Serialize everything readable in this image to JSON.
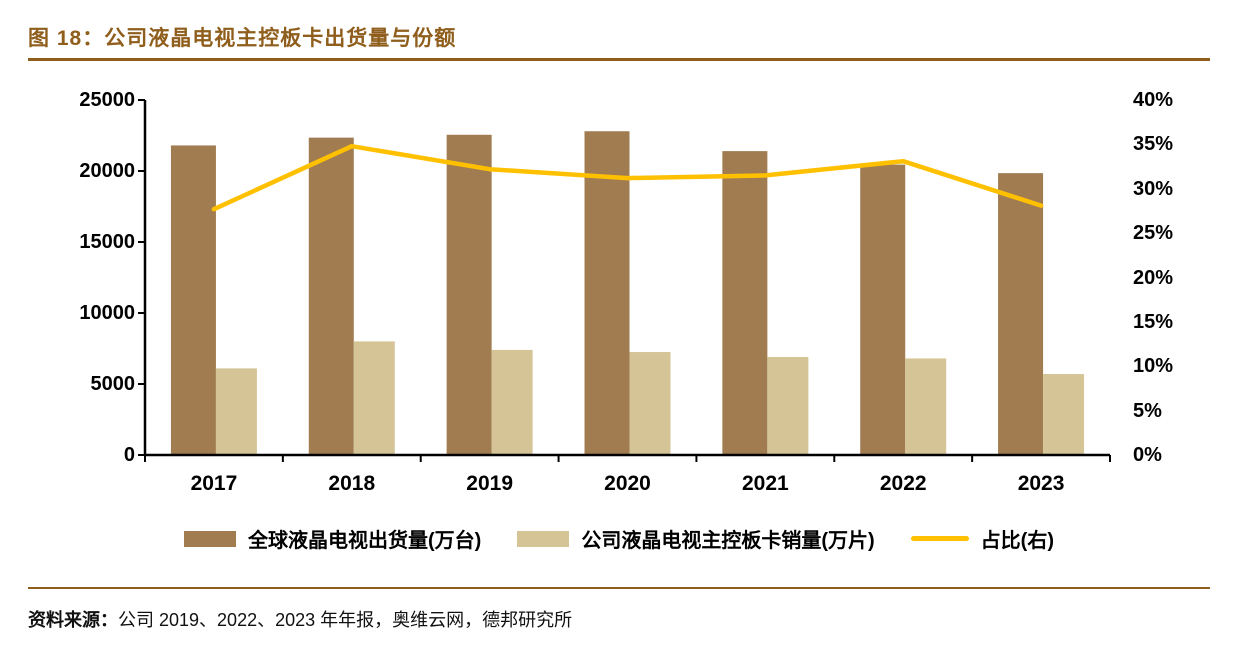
{
  "header": {
    "title": "图 18：公司液晶电视主控板卡出货量与份额"
  },
  "chart_data": {
    "type": "bar",
    "subtype": "grouped bars with overlay line (dual axis)",
    "categories": [
      "2017",
      "2018",
      "2019",
      "2020",
      "2021",
      "2022",
      "2023"
    ],
    "series": [
      {
        "name": "全球液晶电视出货量(万台)",
        "type": "bar",
        "axis": "left",
        "color": "#A07C50",
        "values": [
          21800,
          22350,
          22550,
          22800,
          21400,
          20450,
          19850
        ]
      },
      {
        "name": "公司液晶电视主控板卡销量(万片)",
        "type": "bar",
        "axis": "left",
        "color": "#D4C496",
        "values": [
          6100,
          8000,
          7400,
          7250,
          6900,
          6800,
          5700
        ]
      },
      {
        "name": "占比(右)",
        "type": "line",
        "axis": "right",
        "color": "#FFC000",
        "values": [
          27.7,
          34.8,
          32.2,
          31.2,
          31.5,
          33.1,
          28.1
        ]
      }
    ],
    "left_axis": {
      "min": 0,
      "max": 25000,
      "ticks": [
        0,
        5000,
        10000,
        15000,
        20000,
        25000
      ]
    },
    "right_axis": {
      "min": 0,
      "max": 40,
      "ticks": [
        0,
        5,
        10,
        15,
        20,
        25,
        30,
        35,
        40
      ],
      "suffix": "%"
    },
    "grid": false,
    "legend_position": "bottom"
  },
  "footer": {
    "source_label": "资料来源：",
    "source_text": "公司 2019、2022、2023 年年报，奥维云网，德邦研究所"
  },
  "colors": {
    "accent": "#8F5E1C",
    "axis": "#000000",
    "text": "#000000",
    "background": "#FFFFFF"
  }
}
